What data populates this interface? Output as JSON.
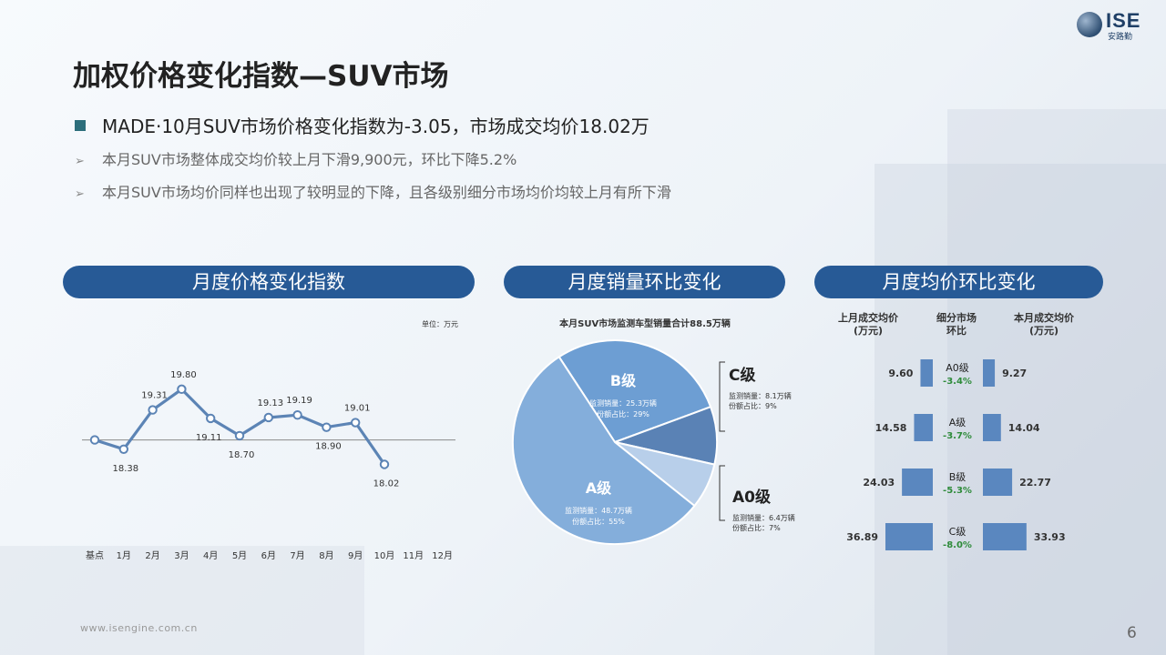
{
  "logo": {
    "brand": "ISE",
    "sub": "安路勤"
  },
  "title": "加权价格变化指数—SUV市场",
  "main_bullet": "MADE·10月SUV市场价格变化指数为-3.05，市场成交均价18.02万",
  "sub_bullets": [
    "本月SUV市场整体成交均价较上月下滑9,900元，环比下降5.2%",
    "本月SUV市场均价同样也出现了较明显的下降，且各级别细分市场均价均较上月有所下滑"
  ],
  "sections": {
    "index": "月度价格变化指数",
    "volume": "月度销量环比变化",
    "price": "月度均价环比变化"
  },
  "unit_label": "单位：万元",
  "pie_title": "本月SUV市场监测车型销量合计88.5万辆",
  "price_headers": {
    "prev": "上月成交均价\n(万元)",
    "seg": "细分市场\n环比",
    "curr": "本月成交均价\n(万元)"
  },
  "footer": {
    "url": "www.isengine.com.cn",
    "page": "6"
  },
  "colors": {
    "accent": "#275a96",
    "line": "#5c84b5",
    "negative": "#2e8b3a",
    "bar": "#5a87bf",
    "pie_a": "#84aedb",
    "pie_b": "#6d9ed3",
    "pie_c": "#5a82b5",
    "pie_a0": "#b8cfea"
  },
  "chart_data": [
    {
      "type": "line",
      "categories": [
        "基点",
        "1月",
        "2月",
        "3月",
        "4月",
        "5月",
        "6月",
        "7月",
        "8月",
        "9月",
        "10月",
        "11月",
        "12月"
      ],
      "series": [
        {
          "values": [
            null,
            18.38,
            19.31,
            19.8,
            19.11,
            18.7,
            19.13,
            19.19,
            18.9,
            19.01,
            18.02,
            null,
            null
          ],
          "labels": [
            "",
            "18.38",
            "19.31",
            "19.80",
            "19.11",
            "18.70",
            "19.13",
            "19.19",
            "18.90",
            "19.01",
            "18.02",
            "",
            ""
          ]
        }
      ],
      "baseline_value": 18.6,
      "title": "",
      "xlabel": "",
      "ylabel": "",
      "ylim": [
        17.6,
        20.4
      ],
      "grid": false
    },
    {
      "type": "pie",
      "title": "本月SUV市场监测车型销量合计88.5万辆",
      "slices": [
        {
          "name": "B级",
          "value": 25.3,
          "share": 29,
          "sales_label": "监测销量：25.3万辆",
          "share_label": "份额占比：29%"
        },
        {
          "name": "C级",
          "value": 8.1,
          "share": 9,
          "sales_label": "监测销量：8.1万辆",
          "share_label": "份额占比：9%"
        },
        {
          "name": "A0级",
          "value": 6.4,
          "share": 7,
          "sales_label": "监测销量：6.4万辆",
          "share_label": "份额占比：7%"
        },
        {
          "name": "A级",
          "value": 48.7,
          "share": 55,
          "sales_label": "监测销量：48.7万辆",
          "share_label": "份额占比：55%"
        }
      ]
    },
    {
      "type": "bar",
      "categories": [
        "A0级",
        "A级",
        "B级",
        "C级"
      ],
      "series": [
        {
          "name": "上月成交均价\n(万元)",
          "values": [
            9.6,
            14.58,
            24.03,
            36.89
          ],
          "labels": [
            "9.60",
            "14.58",
            "24.03",
            "36.89"
          ]
        },
        {
          "name": "本月成交均价\n(万元)",
          "values": [
            9.27,
            14.04,
            22.77,
            33.93
          ],
          "labels": [
            "9.27",
            "14.04",
            "22.77",
            "33.93"
          ]
        }
      ],
      "change_labels": [
        "-3.4%",
        "-3.7%",
        "-5.3%",
        "-8.0%"
      ],
      "change_values": [
        -3.4,
        -3.7,
        -5.3,
        -8.0
      ]
    }
  ]
}
